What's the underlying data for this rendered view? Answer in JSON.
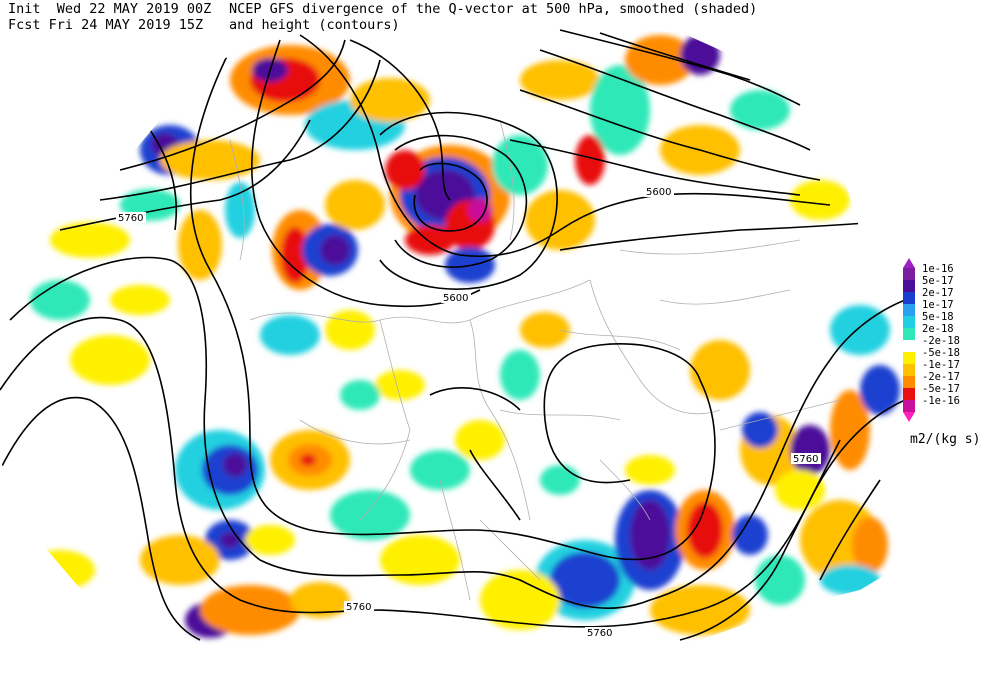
{
  "header": {
    "init_label": "Init",
    "init_time": "Wed 22 MAY 2019 00Z",
    "fcst_label": "Fcst",
    "fcst_time": "Fri 24 MAY 2019 15Z",
    "title_line1": "NCEP GFS divergence of the Q-vector at 500 hPa, smoothed (shaded)",
    "title_line2": "and height (contours)"
  },
  "contour_labels": [
    "5760",
    "5600",
    "5600",
    "5760",
    "5760",
    "5760"
  ],
  "colorbar": {
    "levels": [
      {
        "label": "1e-16",
        "color": "#7a1fa0"
      },
      {
        "label": "5e-17",
        "color": "#4b0e9a"
      },
      {
        "label": "2e-17",
        "color": "#1a3fd0"
      },
      {
        "label": "1e-17",
        "color": "#2aa0f0"
      },
      {
        "label": "5e-18",
        "color": "#20d0e0"
      },
      {
        "label": "2e-18",
        "color": "#2ee8b8"
      },
      {
        "label": "-2e-18",
        "color": "#ffffff"
      },
      {
        "label": "-5e-18",
        "color": "#fff000"
      },
      {
        "label": "-1e-17",
        "color": "#ffc000"
      },
      {
        "label": "-2e-17",
        "color": "#ff8c00"
      },
      {
        "label": "-5e-17",
        "color": "#e81010"
      },
      {
        "label": "-1e-16",
        "color": "#c8109a"
      }
    ],
    "top_color": "#a020c0",
    "bottom_color": "#ff20c0",
    "unit": "m2/(kg s)"
  },
  "colors": {
    "contour": "#000000",
    "borders": "#b0b0b0"
  }
}
